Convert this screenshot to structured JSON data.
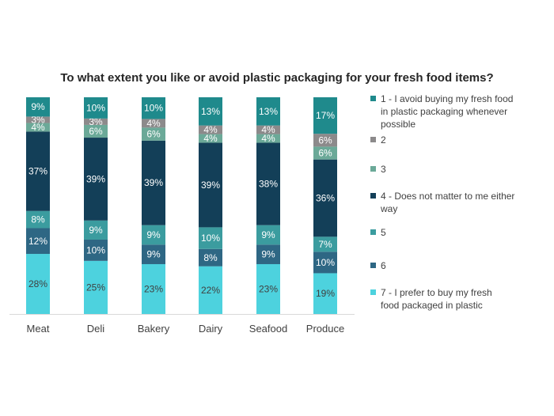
{
  "chart_data": {
    "type": "bar",
    "stacked": true,
    "percent_stacked": true,
    "title": "To what extent you like or avoid plastic packaging for your fresh food items?",
    "categories": [
      "Meat",
      "Deli",
      "Bakery",
      "Dairy",
      "Seafood",
      "Produce"
    ],
    "series": [
      {
        "name": "7 - I prefer to buy my fresh food packaged in plastic",
        "color": "#4dd2de",
        "label_color": "#404040",
        "values": [
          28,
          25,
          23,
          22,
          23,
          19
        ]
      },
      {
        "name": "6",
        "color": "#2e6784",
        "label_color": "#ffffff",
        "values": [
          12,
          10,
          9,
          8,
          9,
          10
        ]
      },
      {
        "name": "5",
        "color": "#3b9c9f",
        "label_color": "#ffffff",
        "values": [
          8,
          9,
          9,
          10,
          9,
          7
        ]
      },
      {
        "name": "4 - Does not matter to me either way",
        "color": "#133f58",
        "label_color": "#ffffff",
        "values": [
          37,
          39,
          39,
          39,
          38,
          36
        ]
      },
      {
        "name": "3",
        "color": "#6ba998",
        "label_color": "#ffffff",
        "values": [
          4,
          6,
          6,
          4,
          4,
          6
        ]
      },
      {
        "name": "2",
        "color": "#8c8a8b",
        "label_color": "#ffffff",
        "values": [
          3,
          3,
          4,
          4,
          4,
          6
        ]
      },
      {
        "name": "1 - I avoid buying my fresh food in plastic packaging whenever possible",
        "color": "#1f8a8c",
        "label_color": "#ffffff",
        "values": [
          9,
          10,
          10,
          13,
          13,
          17
        ]
      }
    ],
    "ylim": [
      0,
      100
    ],
    "value_suffix": "%",
    "grid": false,
    "legend_position": "right",
    "legend_order": [
      "1 - I avoid buying my fresh food in plastic packaging whenever possible",
      "2",
      "3",
      "4 - Does not matter to me either way",
      "5",
      "6",
      "7 - I prefer to buy my fresh food packaged in plastic"
    ]
  }
}
